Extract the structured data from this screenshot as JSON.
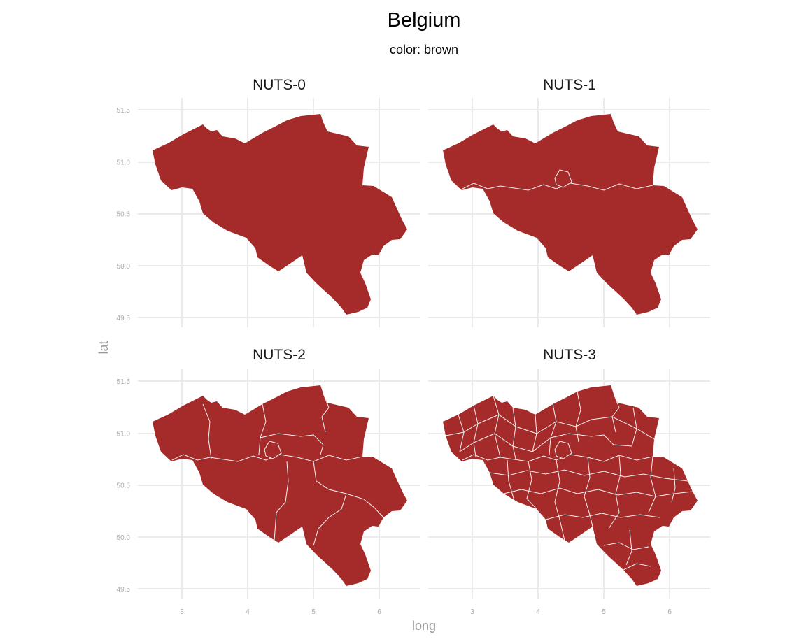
{
  "title": "Belgium",
  "subtitle": "color: brown",
  "fill_color": "#a52a2a",
  "border_color": "#f2f2f2",
  "grid_color": "#ebebeb",
  "x_axis": {
    "label": "long",
    "ticks": [
      3,
      4,
      5,
      6
    ],
    "range": [
      2.4,
      6.7
    ]
  },
  "y_axis": {
    "label": "lat",
    "ticks": [
      "49.5",
      "50.0",
      "50.5",
      "51.0",
      "51.5"
    ],
    "range": [
      49.45,
      51.55
    ]
  },
  "panels": [
    {
      "label": "NUTS-0"
    },
    {
      "label": "NUTS-1"
    },
    {
      "label": "NUTS-2"
    },
    {
      "label": "NUTS-3"
    }
  ]
}
